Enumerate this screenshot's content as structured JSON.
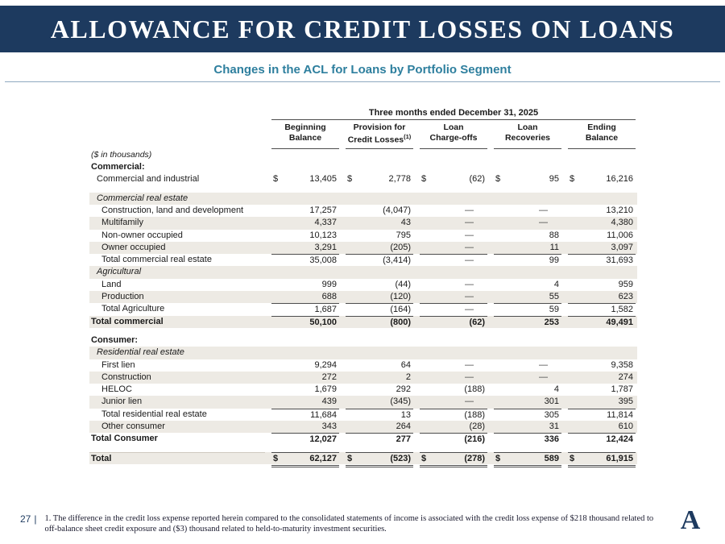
{
  "slide": {
    "title": "ALLOWANCE FOR CREDIT LOSSES ON LOANS",
    "subtitle": "Changes in the ACL for Loans by Portfolio Segment",
    "page_number": "27",
    "page_separator": "|",
    "footnote": "1. The difference in the credit loss expense reported herein compared to the consolidated statements of income is associated with the credit loss expense of $218 thousand related to off-balance sheet credit exposure and ($3) thousand related to held-to-maturity investment securities.",
    "logo_letter": "A"
  },
  "colors": {
    "banner": "#1d3a5f",
    "subtitle": "#2e7f9e",
    "shade": "#edeae4"
  },
  "chart_data": {
    "type": "table",
    "span_header": "Three months ended December 31, 2025",
    "units_label": "($ in thousands)",
    "columns": [
      {
        "line1": "Beginning",
        "line2": "Balance",
        "sup": ""
      },
      {
        "line1": "Provision for",
        "line2": "Credit Losses",
        "sup": "(1)"
      },
      {
        "line1": "Loan",
        "line2": "Charge-offs",
        "sup": ""
      },
      {
        "line1": "Loan",
        "line2": "Recoveries",
        "sup": ""
      },
      {
        "line1": "Ending",
        "line2": "Balance",
        "sup": ""
      }
    ],
    "rows": [
      {
        "label": "($ in thousands)",
        "type": "units",
        "indent": 0
      },
      {
        "label": "Commercial:",
        "type": "section",
        "indent": 0
      },
      {
        "label": "Commercial and industrial",
        "type": "data",
        "indent": 1,
        "dollar": true,
        "values": [
          "13,405",
          "2,778",
          "(62)",
          "95",
          "16,216"
        ]
      },
      {
        "type": "spacer"
      },
      {
        "label": "Commercial real estate",
        "type": "subheader",
        "indent": 1,
        "shaded": true
      },
      {
        "label": "Construction, land and development",
        "type": "data",
        "indent": 2,
        "values": [
          "17,257",
          "(4,047)",
          "—",
          "—",
          "13,210"
        ]
      },
      {
        "label": "Multifamily",
        "type": "data",
        "indent": 2,
        "shaded": true,
        "values": [
          "4,337",
          "43",
          "—",
          "—",
          "4,380"
        ]
      },
      {
        "label": "Non-owner occupied",
        "type": "data",
        "indent": 2,
        "values": [
          "10,123",
          "795",
          "—",
          "88",
          "11,006"
        ]
      },
      {
        "label": "Owner occupied",
        "type": "data",
        "indent": 2,
        "shaded": true,
        "values": [
          "3,291",
          "(205)",
          "—",
          "11",
          "3,097"
        ]
      },
      {
        "label": "Total commercial real estate",
        "type": "total",
        "indent": 2,
        "border_top": true,
        "values": [
          "35,008",
          "(3,414)",
          "—",
          "99",
          "31,693"
        ]
      },
      {
        "label": "Agricultural",
        "type": "subheader",
        "indent": 1,
        "shaded": true
      },
      {
        "label": "Land",
        "type": "data",
        "indent": 2,
        "values": [
          "999",
          "(44)",
          "—",
          "4",
          "959"
        ]
      },
      {
        "label": "Production",
        "type": "data",
        "indent": 2,
        "shaded": true,
        "values": [
          "688",
          "(120)",
          "—",
          "55",
          "623"
        ]
      },
      {
        "label": "Total Agriculture",
        "type": "total",
        "indent": 2,
        "border_top": true,
        "values": [
          "1,687",
          "(164)",
          "—",
          "59",
          "1,582"
        ]
      },
      {
        "label": "Total commercial",
        "type": "sectiontotal",
        "indent": 0,
        "shaded": true,
        "border_top": true,
        "values": [
          "50,100",
          "(800)",
          "(62)",
          "253",
          "49,491"
        ]
      },
      {
        "type": "spacer"
      },
      {
        "label": "Consumer:",
        "type": "section",
        "indent": 0
      },
      {
        "label": "Residential real estate",
        "type": "subheader",
        "indent": 1,
        "shaded": true
      },
      {
        "label": "First lien",
        "type": "data",
        "indent": 2,
        "values": [
          "9,294",
          "64",
          "—",
          "—",
          "9,358"
        ]
      },
      {
        "label": "Construction",
        "type": "data",
        "indent": 2,
        "shaded": true,
        "values": [
          "272",
          "2",
          "—",
          "—",
          "274"
        ]
      },
      {
        "label": "HELOC",
        "type": "data",
        "indent": 2,
        "values": [
          "1,679",
          "292",
          "(188)",
          "4",
          "1,787"
        ]
      },
      {
        "label": "Junior lien",
        "type": "data",
        "indent": 2,
        "shaded": true,
        "values": [
          "439",
          "(345)",
          "—",
          "301",
          "395"
        ]
      },
      {
        "label": "Total residential real estate",
        "type": "total",
        "indent": 2,
        "border_top": true,
        "values": [
          "11,684",
          "13",
          "(188)",
          "305",
          "11,814"
        ]
      },
      {
        "label": "Other consumer",
        "type": "data",
        "indent": 2,
        "shaded": true,
        "values": [
          "343",
          "264",
          "(28)",
          "31",
          "610"
        ]
      },
      {
        "label": "Total Consumer",
        "type": "sectiontotal",
        "indent": 0,
        "border_top": true,
        "values": [
          "12,027",
          "277",
          "(216)",
          "336",
          "12,424"
        ]
      },
      {
        "type": "spacer"
      },
      {
        "label": "Total",
        "type": "grandtotal",
        "indent": 0,
        "dollar": true,
        "shaded": true,
        "border_top": true,
        "double_bottom": true,
        "values": [
          "62,127",
          "(523)",
          "(278)",
          "589",
          "61,915"
        ]
      }
    ]
  }
}
